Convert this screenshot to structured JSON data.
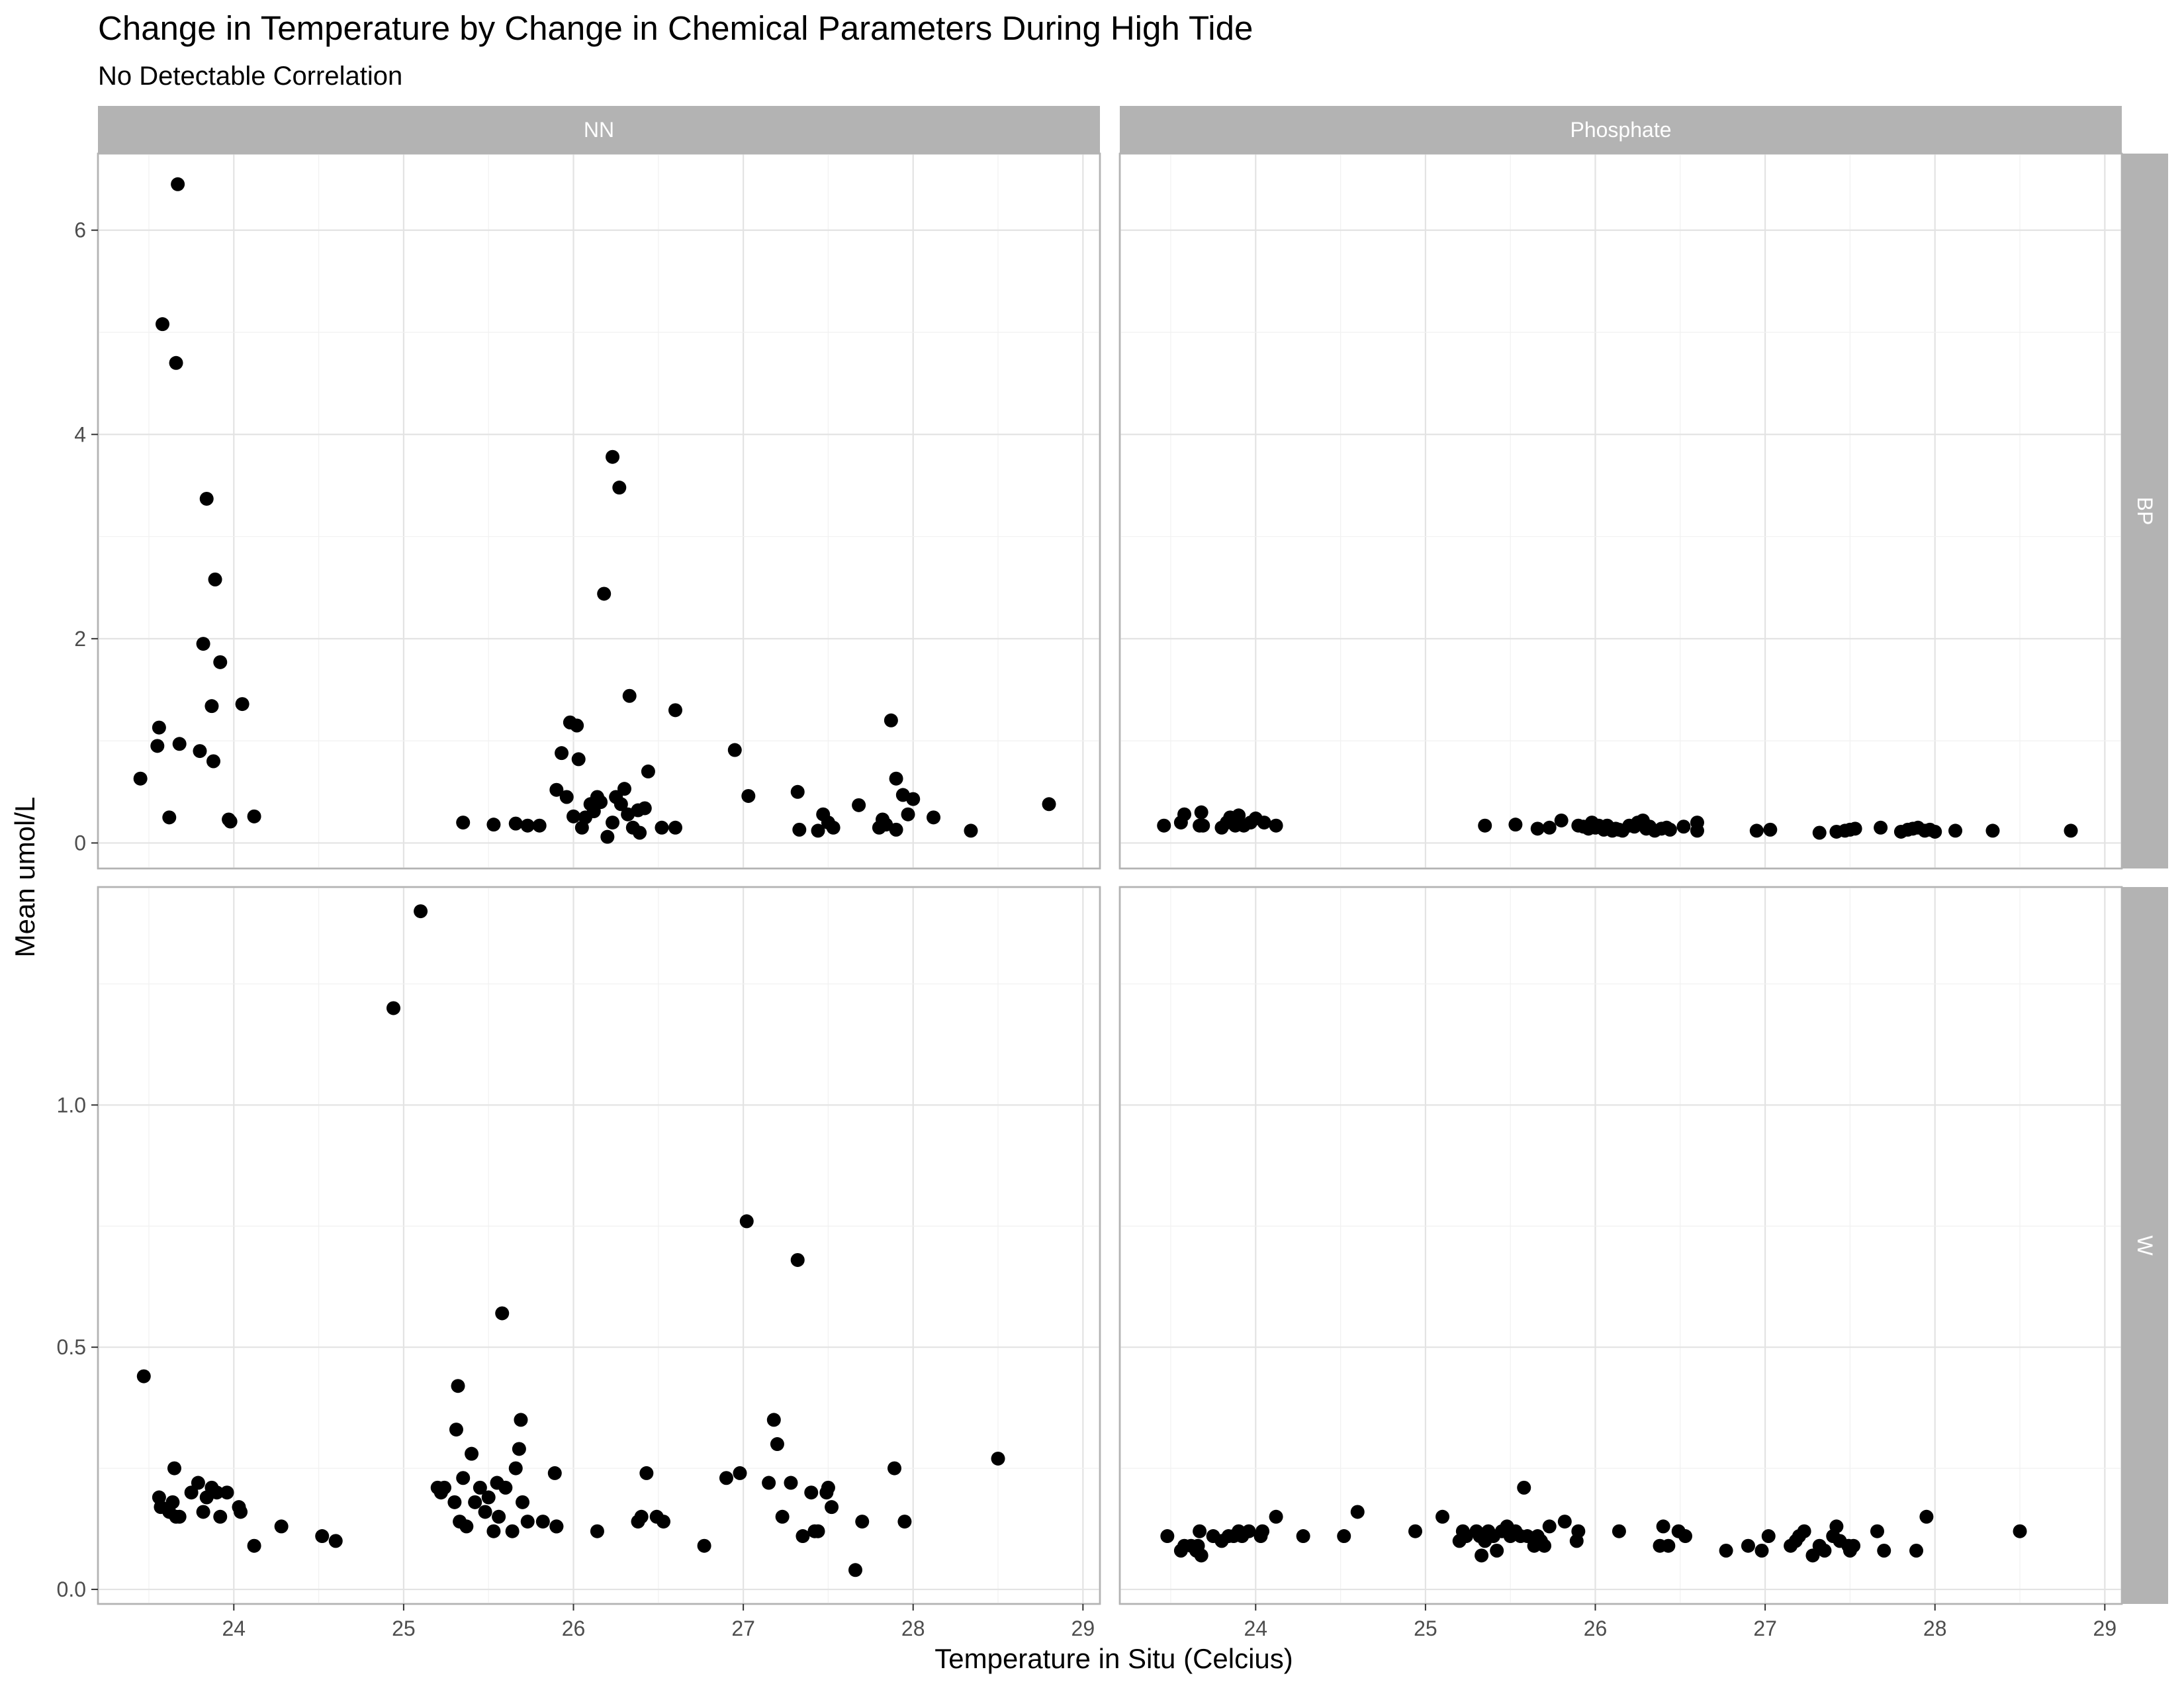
{
  "title": "Change in Temperature by Change in Chemical Parameters During High Tide",
  "subtitle": "No Detectable Correlation",
  "chart_data": {
    "type": "scatter",
    "facets": {
      "columns": [
        "NN",
        "Phosphate"
      ],
      "rows": [
        "BP",
        "W"
      ]
    },
    "xlabel": "Temperature in Situ (Celcius)",
    "ylabel": "Mean umol/L",
    "xlim": [
      23.2,
      29.1
    ],
    "x_ticks": [
      "24",
      "25",
      "26",
      "27",
      "28",
      "29"
    ],
    "row_scales": {
      "BP": {
        "ylim": [
          -0.25,
          6.75
        ],
        "ticks": [
          "0",
          "2",
          "4",
          "6"
        ]
      },
      "W": {
        "ylim": [
          -0.03,
          1.45
        ],
        "ticks": [
          "0.0",
          "0.5",
          "1.0"
        ]
      }
    },
    "grid": true,
    "legend": "none",
    "point_color": "#000000",
    "panels": [
      {
        "col": "NN",
        "row": "BP",
        "x": [
          23.45,
          23.55,
          23.56,
          23.58,
          23.66,
          23.67,
          23.68,
          23.8,
          23.82,
          23.84,
          23.87,
          23.88,
          23.89,
          23.92,
          23.97,
          23.98,
          24.05,
          24.12,
          25.35,
          25.53,
          25.66,
          25.8,
          25.73,
          25.9,
          25.93,
          25.96,
          25.98,
          26.0,
          26.02,
          26.03,
          26.05,
          26.07,
          26.1,
          26.12,
          26.14,
          26.16,
          26.2,
          26.23,
          26.25,
          26.28,
          26.3,
          26.32,
          26.35,
          26.39,
          26.42,
          26.44,
          26.52,
          26.6,
          26.6,
          26.95,
          27.03,
          27.32,
          27.33,
          27.44,
          27.47,
          27.5,
          27.53,
          27.68,
          27.8,
          27.82,
          27.84,
          27.87,
          27.9,
          27.9,
          27.94,
          27.97,
          28.0,
          28.12,
          28.34,
          28.8
        ],
        "y": [
          0.63,
          0.95,
          1.13,
          5.08,
          4.7,
          6.45,
          0.97,
          0.9,
          1.95,
          3.37,
          1.34,
          0.8,
          2.58,
          1.77,
          0.23,
          0.21,
          1.36,
          0.26,
          0.2,
          0.18,
          0.19,
          0.17,
          0.17,
          0.52,
          0.88,
          0.45,
          1.18,
          0.26,
          1.15,
          0.82,
          0.15,
          0.25,
          0.38,
          0.31,
          0.45,
          0.4,
          0.06,
          0.2,
          0.45,
          0.38,
          0.53,
          0.28,
          0.15,
          0.1,
          0.34,
          0.7,
          0.15,
          0.15,
          1.3,
          0.91,
          0.46,
          0.5,
          0.13,
          0.12,
          0.28,
          0.2,
          0.15,
          0.37,
          0.15,
          0.23,
          0.18,
          1.2,
          0.13,
          0.63,
          0.47,
          0.28,
          0.43,
          0.25,
          0.12,
          0.38
        ],
        "x_extra": [
          23.62,
          26.18,
          26.27,
          26.33,
          26.38,
          26.23
        ],
        "y_extra": [
          0.25,
          2.44,
          3.48,
          1.44,
          0.32,
          3.78
        ]
      },
      {
        "col": "Phosphate",
        "row": "BP",
        "x": [
          23.46,
          23.56,
          23.58,
          23.67,
          23.68,
          23.69,
          23.8,
          23.83,
          23.85,
          23.88,
          23.9,
          23.93,
          23.97,
          24.0,
          24.05,
          24.12,
          25.35,
          25.53,
          25.66,
          25.73,
          25.8,
          25.9,
          25.93,
          25.96,
          25.98,
          26.0,
          26.02,
          26.05,
          26.07,
          26.1,
          26.12,
          26.14,
          26.16,
          26.2,
          26.23,
          26.25,
          26.28,
          26.3,
          26.32,
          26.35,
          26.39,
          26.42,
          26.44,
          26.52,
          26.6,
          26.6,
          26.95,
          27.03,
          27.32,
          27.42,
          27.47,
          27.5,
          27.53,
          27.68,
          27.8,
          27.84,
          27.87,
          27.9,
          27.94,
          27.97,
          28.0,
          28.12,
          28.34,
          28.8
        ],
        "y": [
          0.17,
          0.2,
          0.28,
          0.17,
          0.3,
          0.17,
          0.15,
          0.2,
          0.25,
          0.17,
          0.27,
          0.17,
          0.2,
          0.24,
          0.2,
          0.17,
          0.17,
          0.18,
          0.14,
          0.15,
          0.22,
          0.17,
          0.16,
          0.14,
          0.2,
          0.15,
          0.17,
          0.13,
          0.17,
          0.12,
          0.14,
          0.13,
          0.12,
          0.17,
          0.16,
          0.2,
          0.22,
          0.14,
          0.16,
          0.12,
          0.14,
          0.15,
          0.13,
          0.16,
          0.2,
          0.12,
          0.12,
          0.13,
          0.1,
          0.11,
          0.12,
          0.13,
          0.14,
          0.15,
          0.11,
          0.13,
          0.14,
          0.15,
          0.12,
          0.13,
          0.11,
          0.12,
          0.12,
          0.12
        ]
      },
      {
        "col": "NN",
        "row": "W",
        "x": [
          23.47,
          23.56,
          23.57,
          23.62,
          23.64,
          23.65,
          23.66,
          23.68,
          23.75,
          23.79,
          23.82,
          23.84,
          23.87,
          23.9,
          23.92,
          23.96,
          24.03,
          24.04,
          24.12,
          24.28,
          24.52,
          24.6,
          24.94,
          25.1,
          25.2,
          25.22,
          25.24,
          25.3,
          25.31,
          25.32,
          25.33,
          25.35,
          25.37,
          25.4,
          25.42,
          25.45,
          25.48,
          25.5,
          25.53,
          25.55,
          25.56,
          25.58,
          25.6,
          25.64,
          25.66,
          25.68,
          25.7,
          25.73,
          25.82,
          25.89,
          25.9,
          26.14,
          26.38,
          26.4,
          26.43,
          26.49,
          26.53,
          26.77,
          26.9,
          26.98,
          27.02,
          27.15,
          27.18,
          27.2,
          27.23,
          27.28,
          27.32,
          27.35,
          27.4,
          27.42,
          27.44,
          27.49,
          27.5,
          27.52,
          27.66,
          27.7,
          27.89,
          27.95,
          28.5
        ],
        "y": [
          0.44,
          0.19,
          0.17,
          0.16,
          0.18,
          0.25,
          0.15,
          0.15,
          0.2,
          0.22,
          0.16,
          0.19,
          0.21,
          0.2,
          0.15,
          0.2,
          0.17,
          0.16,
          0.09,
          0.13,
          0.11,
          0.1,
          1.2,
          1.4,
          0.21,
          0.2,
          0.21,
          0.18,
          0.33,
          0.42,
          0.14,
          0.23,
          0.13,
          0.28,
          0.18,
          0.21,
          0.16,
          0.19,
          0.12,
          0.22,
          0.15,
          0.57,
          0.21,
          0.12,
          0.25,
          0.29,
          0.18,
          0.14,
          0.14,
          0.24,
          0.13,
          0.12,
          0.14,
          0.15,
          0.24,
          0.15,
          0.14,
          0.09,
          0.23,
          0.24,
          0.76,
          0.22,
          0.35,
          0.3,
          0.15,
          0.22,
          0.68,
          0.11,
          0.2,
          0.12,
          0.12,
          0.2,
          0.21,
          0.17,
          0.04,
          0.14,
          0.25,
          0.14,
          0.27
        ],
        "x_extra": [
          25.69,
          25.9
        ],
        "y_extra": [
          0.35,
          0.13
        ]
      },
      {
        "col": "Phosphate",
        "row": "W",
        "x": [
          23.48,
          23.56,
          23.58,
          23.62,
          23.65,
          23.66,
          23.67,
          23.68,
          23.75,
          23.8,
          23.84,
          23.87,
          23.9,
          23.92,
          23.96,
          24.03,
          24.04,
          24.12,
          24.28,
          24.52,
          24.6,
          24.94,
          25.1,
          25.2,
          25.22,
          25.24,
          25.3,
          25.32,
          25.33,
          25.35,
          25.37,
          25.4,
          25.42,
          25.45,
          25.48,
          25.5,
          25.53,
          25.56,
          25.58,
          25.6,
          25.64,
          25.66,
          25.68,
          25.7,
          25.73,
          25.82,
          25.89,
          25.9,
          26.14,
          26.38,
          26.4,
          26.43,
          26.49,
          26.53,
          26.77,
          26.9,
          26.98,
          27.02,
          27.15,
          27.18,
          27.2,
          27.23,
          27.28,
          27.32,
          27.35,
          27.4,
          27.42,
          27.44,
          27.49,
          27.5,
          27.52,
          27.66,
          27.7,
          27.89,
          27.95,
          28.5
        ],
        "y": [
          0.11,
          0.08,
          0.09,
          0.09,
          0.08,
          0.09,
          0.12,
          0.07,
          0.11,
          0.1,
          0.11,
          0.11,
          0.12,
          0.11,
          0.12,
          0.11,
          0.12,
          0.15,
          0.11,
          0.11,
          0.16,
          0.12,
          0.15,
          0.1,
          0.12,
          0.11,
          0.12,
          0.11,
          0.07,
          0.1,
          0.12,
          0.11,
          0.08,
          0.12,
          0.13,
          0.11,
          0.12,
          0.11,
          0.21,
          0.11,
          0.09,
          0.11,
          0.1,
          0.09,
          0.13,
          0.14,
          0.1,
          0.12,
          0.12,
          0.09,
          0.13,
          0.09,
          0.12,
          0.11,
          0.08,
          0.09,
          0.08,
          0.11,
          0.09,
          0.1,
          0.11,
          0.12,
          0.07,
          0.09,
          0.08,
          0.11,
          0.13,
          0.1,
          0.09,
          0.08,
          0.09,
          0.12,
          0.08,
          0.08,
          0.15,
          0.12
        ]
      }
    ]
  }
}
